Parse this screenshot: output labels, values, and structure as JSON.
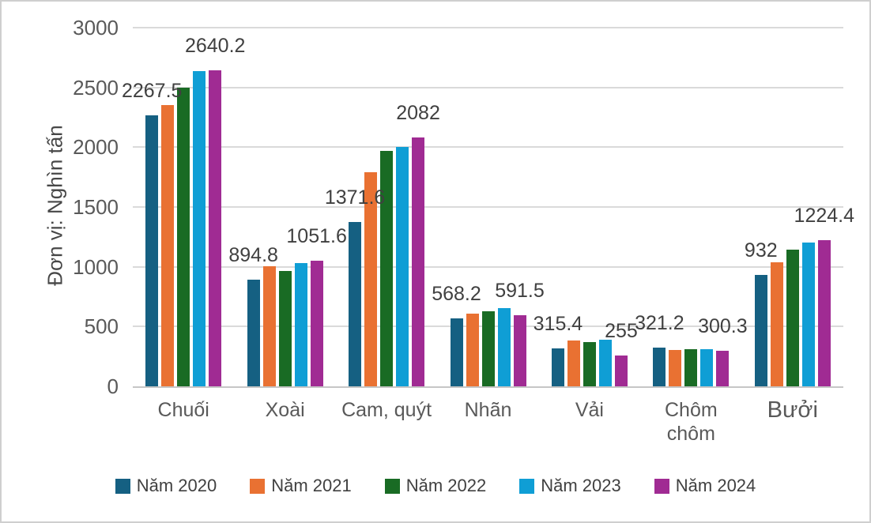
{
  "chart_data": {
    "type": "bar",
    "title": "",
    "ylabel": "Đơn vị: Nghìn tấn",
    "ylim": [
      0,
      3000
    ],
    "yticks": [
      0,
      500,
      1000,
      1500,
      2000,
      2500,
      3000
    ],
    "grid": true,
    "legend_position": "bottom",
    "categories": [
      "Chuối",
      "Xoài",
      "Cam, quýt",
      "Nhãn",
      "Vải",
      "Chôm chôm",
      "Bưởi"
    ],
    "series": [
      {
        "name": "Năm 2020",
        "color": "#156082",
        "values": [
          2267.5,
          894.8,
          1371.6,
          568.2,
          315.4,
          321.2,
          932
        ],
        "labels": [
          "2267.5",
          "894.8",
          "1371.6",
          "568.2",
          "315.4",
          "321.2",
          "932"
        ]
      },
      {
        "name": "Năm 2021",
        "color": "#E97132",
        "values": [
          2355,
          1005,
          1790,
          610,
          380,
          305,
          1035
        ],
        "labels": null
      },
      {
        "name": "Năm 2022",
        "color": "#196B24",
        "values": [
          2500,
          965,
          1970,
          625,
          370,
          313,
          1140
        ],
        "labels": null
      },
      {
        "name": "Năm 2023",
        "color": "#0F9ED5",
        "values": [
          2635,
          1030,
          2000,
          655,
          390,
          310,
          1200
        ],
        "labels": null
      },
      {
        "name": "Năm 2024",
        "color": "#A02B93",
        "values": [
          2640.2,
          1051.6,
          2082,
          591.5,
          255,
          300.3,
          1224.4
        ],
        "labels": [
          "2640.2",
          "1051.6",
          "2082",
          "591.5",
          "255",
          "300.3",
          "1224.4"
        ]
      }
    ]
  }
}
